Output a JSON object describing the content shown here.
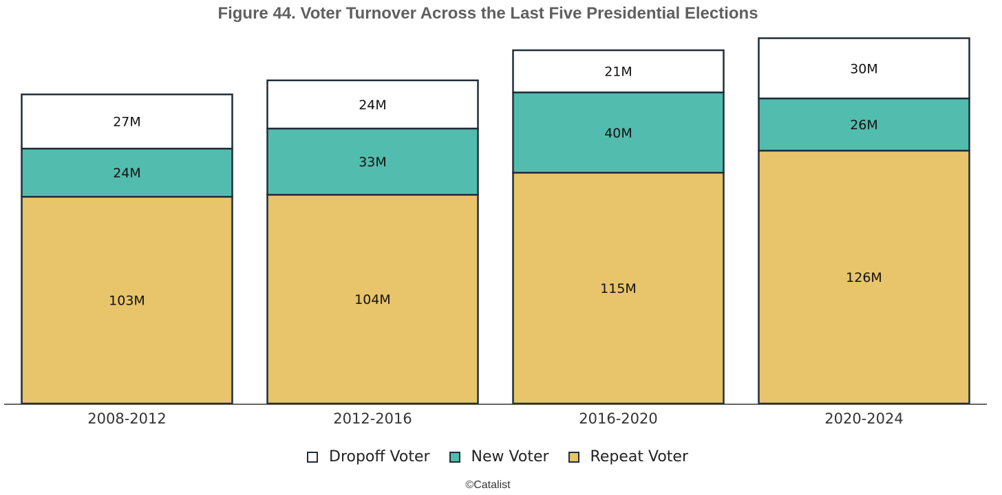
{
  "chart_data": {
    "type": "bar",
    "stacked": true,
    "title": "Figure 44. Voter Turnover Across the Last Five Presidential Elections",
    "categories": [
      "2008-2012",
      "2012-2016",
      "2016-2020",
      "2020-2024"
    ],
    "series": [
      {
        "name": "Repeat Voter",
        "values": [
          103,
          104,
          115,
          126
        ],
        "labels": [
          "103M",
          "104M",
          "115M",
          "126M"
        ],
        "color": "#e8c46b"
      },
      {
        "name": "New Voter",
        "values": [
          24,
          33,
          40,
          26
        ],
        "labels": [
          "24M",
          "33M",
          "40M",
          "26M"
        ],
        "color": "#52bcae"
      },
      {
        "name": "Dropoff Voter",
        "values": [
          27,
          24,
          21,
          30
        ],
        "labels": [
          "27M",
          "24M",
          "21M",
          "30M"
        ],
        "color": "#ffffff"
      }
    ],
    "legend_position": "bottom",
    "xlabel": "",
    "ylabel": "",
    "y_axis_visible": false,
    "ylim": [
      0,
      182
    ]
  },
  "colors": {
    "bar_outline": "#1f2d3a",
    "baseline": "#333333",
    "title": "#5f5f5f"
  },
  "legend": {
    "items": [
      {
        "label": "Dropoff Voter",
        "color": "#ffffff"
      },
      {
        "label": "New Voter",
        "color": "#52bcae"
      },
      {
        "label": "Repeat Voter",
        "color": "#e8c46b"
      }
    ]
  },
  "credit": "©Catalist"
}
